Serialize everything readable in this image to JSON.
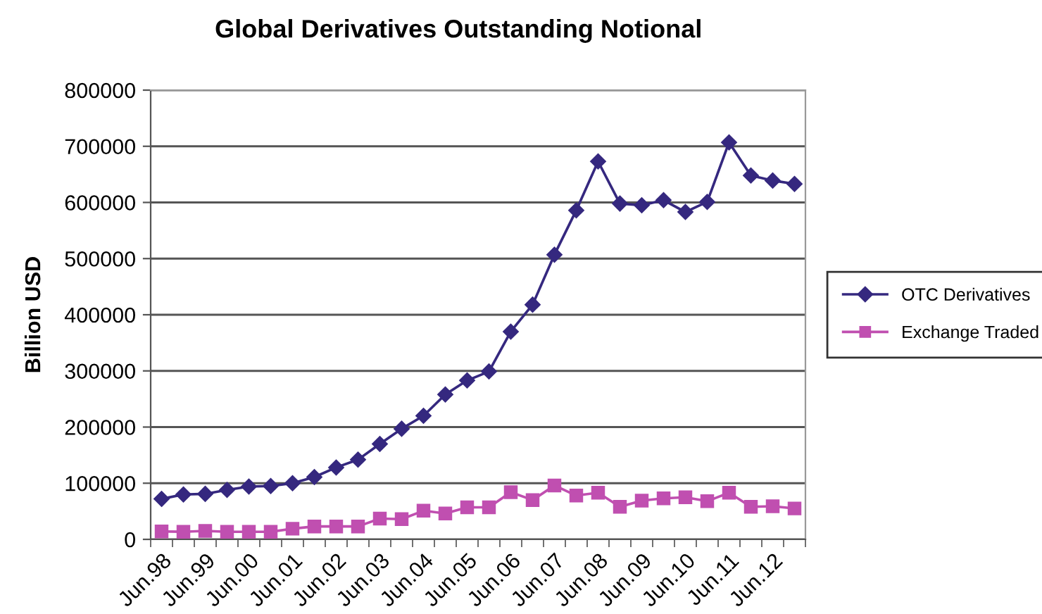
{
  "chart_data": {
    "type": "line",
    "title": "Global Derivatives Outstanding Notional",
    "ylabel": "Billion USD",
    "categories": [
      "Jun.98",
      null,
      "Jun.99",
      null,
      "Jun.00",
      null,
      "Jun.01",
      null,
      "Jun.02",
      null,
      "Jun.03",
      null,
      "Jun.04",
      null,
      "Jun.05",
      null,
      "Jun.06",
      null,
      "Jun.07",
      null,
      "Jun.08",
      null,
      "Jun.09",
      null,
      "Jun.10",
      null,
      "Jun.11",
      null,
      "Jun.12",
      null
    ],
    "series": [
      {
        "name": "OTC Derivatives",
        "color": "#35287f",
        "marker": "diamond",
        "values": [
          72000,
          80000,
          81000,
          88000,
          94000,
          95000,
          100000,
          111000,
          128000,
          142000,
          170000,
          197000,
          220000,
          258000,
          283000,
          299000,
          370000,
          418000,
          507000,
          586000,
          673000,
          598000,
          595000,
          604000,
          583000,
          601000,
          707000,
          648000,
          639000,
          633000
        ]
      },
      {
        "name": "Exchange Traded",
        "color": "#c04fb0",
        "marker": "square",
        "values": [
          14000,
          13500,
          15000,
          13500,
          13500,
          13500,
          19000,
          23000,
          23000,
          23000,
          37000,
          36000,
          51000,
          46000,
          57000,
          57000,
          84000,
          70000,
          96000,
          78000,
          83000,
          58000,
          69000,
          73000,
          75000,
          68000,
          83000,
          58000,
          59000,
          55000
        ]
      }
    ],
    "ylim": [
      0,
      800000
    ],
    "yticks": [
      0,
      100000,
      200000,
      300000,
      400000,
      500000,
      600000,
      700000,
      800000
    ],
    "grid": "y",
    "legend": "right"
  }
}
